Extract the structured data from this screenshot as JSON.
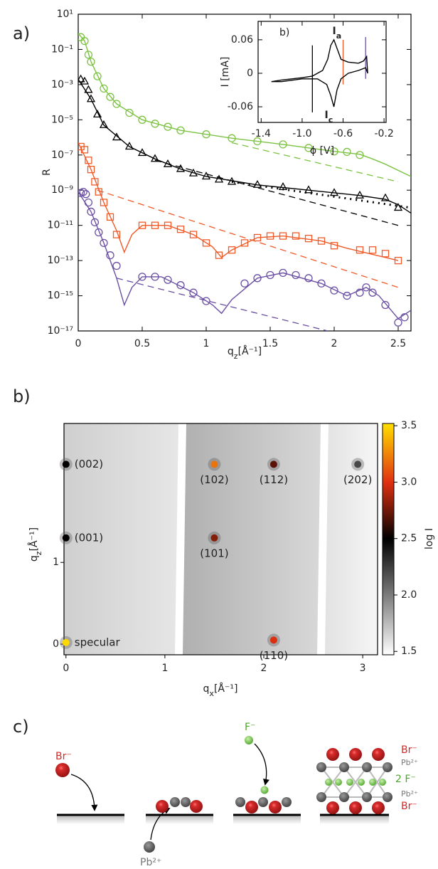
{
  "chart_data": [
    {
      "type": "scatter",
      "panel": "a)",
      "ylabel": "R",
      "xlabel": [
        "q",
        "z",
        "[Å⁻¹]"
      ],
      "ylog": true,
      "xlim": [
        0,
        2.6
      ],
      "ylim": [
        1e-17,
        10
      ],
      "xticks": [
        0,
        0.5,
        1,
        1.5,
        2,
        2.5
      ],
      "yticks": [
        {
          "value": 10,
          "label": "10¹"
        },
        {
          "value": 0.1,
          "label": "10⁻¹"
        },
        {
          "value": 0.001,
          "label": "10⁻³"
        },
        {
          "value": 1e-05,
          "label": "10⁻⁵"
        },
        {
          "value": 1e-07,
          "label": "10⁻⁷"
        },
        {
          "value": 1e-09,
          "label": "10⁻⁹"
        },
        {
          "value": 1e-11,
          "label": "10⁻¹¹"
        },
        {
          "value": 1e-13,
          "label": "10⁻¹³"
        },
        {
          "value": 1e-15,
          "label": "10⁻¹⁵"
        },
        {
          "value": 1e-17,
          "label": "10⁻¹⁷"
        }
      ],
      "series": [
        {
          "color": "#7cc242",
          "marker": "circle",
          "x": [
            0.02,
            0.05,
            0.08,
            0.1,
            0.15,
            0.2,
            0.25,
            0.3,
            0.4,
            0.5,
            0.6,
            0.7,
            0.8,
            1.0,
            1.2,
            1.4,
            1.6,
            1.8,
            2.0,
            2.1,
            2.2
          ],
          "values": [
            0.5,
            0.3,
            0.05,
            0.02,
            0.003,
            0.0006,
            0.0002,
            8e-05,
            2.5e-05,
            1e-05,
            6e-06,
            4e-06,
            2.5e-06,
            1.5e-06,
            9e-07,
            6e-07,
            4e-07,
            2.5e-07,
            1.6e-07,
            1.5e-07,
            1e-07
          ],
          "fit_x": [
            0,
            0.05,
            0.1,
            0.2,
            0.3,
            0.5,
            0.8,
            1.2,
            1.6,
            2.0,
            2.2,
            2.3,
            2.4,
            2.6
          ],
          "fit": [
            0.8,
            0.3,
            0.02,
            0.0006,
            8e-05,
            1e-05,
            2.5e-06,
            9e-07,
            4e-07,
            1.6e-07,
            1.1e-07,
            6e-08,
            3e-08,
            6e-09
          ],
          "dash_x": [
            1.2,
            2.5
          ],
          "dash": [
            5e-07,
            3e-09
          ]
        },
        {
          "color": "#000000",
          "marker": "triangle",
          "x": [
            0.02,
            0.05,
            0.08,
            0.1,
            0.15,
            0.2,
            0.3,
            0.4,
            0.5,
            0.6,
            0.7,
            0.8,
            0.9,
            1.0,
            1.1,
            1.2,
            1.4,
            1.6,
            1.8,
            2.0,
            2.2,
            2.4,
            2.5
          ],
          "values": [
            0.002,
            0.0015,
            0.0005,
            0.00015,
            2e-05,
            5e-06,
            1e-06,
            3e-07,
            1.3e-07,
            6e-08,
            3e-08,
            1.6e-08,
            9e-09,
            6e-09,
            4e-09,
            3e-09,
            2e-09,
            1.5e-09,
            1e-09,
            7e-10,
            5e-10,
            3.5e-10,
            1e-10
          ],
          "fit_x": [
            0,
            0.1,
            0.2,
            0.4,
            0.6,
            0.8,
            1.0,
            1.4,
            1.8,
            2.2,
            2.4,
            2.5,
            2.6
          ],
          "fit": [
            0.002,
            0.00015,
            5e-06,
            3e-07,
            6e-08,
            1.6e-08,
            6e-09,
            2e-09,
            1e-09,
            5e-10,
            3e-10,
            1.5e-10,
            5e-11
          ],
          "dash_x": [
            0.6,
            2.5
          ],
          "dash": [
            5e-08,
            1e-11
          ],
          "dot_x": [
            1.2,
            2.6
          ],
          "dot": [
            3e-09,
            1e-10
          ]
        },
        {
          "color": "#f05a28",
          "marker": "square",
          "x": [
            0.02,
            0.05,
            0.08,
            0.1,
            0.13,
            0.16,
            0.2,
            0.25,
            0.3,
            0.5,
            0.6,
            0.7,
            0.8,
            0.9,
            1.0,
            1.1,
            1.2,
            1.3,
            1.4,
            1.5,
            1.6,
            1.7,
            1.8,
            1.9,
            2.0,
            2.2,
            2.3,
            2.4,
            2.5
          ],
          "values": [
            3e-07,
            2e-07,
            5e-08,
            1.5e-08,
            3e-09,
            8e-10,
            2e-10,
            3e-11,
            3e-12,
            1e-11,
            1e-11,
            1e-11,
            6e-12,
            3e-12,
            1e-12,
            2e-13,
            4e-13,
            1e-12,
            2e-12,
            2.5e-12,
            2.5e-12,
            2.5e-12,
            1.8e-12,
            1.3e-12,
            7e-13,
            4e-13,
            4e-13,
            2.5e-13,
            1e-13
          ],
          "fit_x": [
            0,
            0.1,
            0.2,
            0.3,
            0.36,
            0.42,
            0.5,
            0.7,
            0.9,
            1.05,
            1.12,
            1.2,
            1.4,
            1.6,
            1.9,
            2.1,
            2.5
          ],
          "fit": [
            5e-07,
            1.5e-08,
            2e-10,
            5e-12,
            3e-13,
            3e-12,
            1e-11,
            1e-11,
            3e-12,
            6e-13,
            1.5e-13,
            4e-13,
            2e-12,
            2.5e-12,
            1.3e-12,
            5e-13,
            1e-13
          ],
          "dash_x": [
            0.15,
            2.5
          ],
          "dash": [
            1e-09,
            3e-15
          ]
        },
        {
          "color": "#6a4fa3",
          "marker": "circle",
          "x": [
            0.02,
            0.04,
            0.06,
            0.08,
            0.1,
            0.13,
            0.16,
            0.2,
            0.25,
            0.3,
            0.5,
            0.6,
            0.7,
            0.8,
            0.9,
            1.0,
            1.3,
            1.4,
            1.5,
            1.6,
            1.7,
            1.8,
            1.9,
            2.0,
            2.1,
            2.2,
            2.25,
            2.3,
            2.4,
            2.5,
            2.55
          ],
          "values": [
            7e-10,
            8e-10,
            6e-10,
            2e-10,
            6e-11,
            1.5e-11,
            4e-12,
            1e-12,
            2e-13,
            5e-14,
            1.2e-14,
            1.2e-14,
            8e-15,
            4e-15,
            1.5e-15,
            5e-16,
            5e-15,
            1e-14,
            1.5e-14,
            2e-14,
            1.5e-14,
            1e-14,
            5e-15,
            2e-15,
            1e-15,
            1.5e-15,
            3e-15,
            1.5e-15,
            3e-16,
            3e-17,
            6e-17
          ],
          "fit_x": [
            0,
            0.1,
            0.2,
            0.3,
            0.36,
            0.42,
            0.5,
            0.65,
            0.9,
            1.05,
            1.12,
            1.2,
            1.4,
            1.6,
            1.9,
            2.1,
            2.25,
            2.35,
            2.5,
            2.6
          ],
          "fit": [
            8e-10,
            6e-11,
            1e-12,
            1e-14,
            3e-16,
            3e-15,
            1.2e-14,
            1.2e-14,
            1.5e-15,
            3e-16,
            1e-16,
            6e-16,
            1e-14,
            2e-14,
            5e-15,
            1e-15,
            3e-15,
            1e-15,
            5e-17,
            1.5e-16
          ],
          "dash_x": [
            0.3,
            1.95
          ],
          "dash": [
            1e-14,
            1e-17
          ]
        }
      ]
    },
    {
      "type": "line",
      "panel": "b)",
      "xlabel": "ϕ [V]",
      "ylabel": "I [mA]",
      "color": "#000000",
      "xlim": [
        -1.43,
        -0.18
      ],
      "ylim": [
        -0.088,
        0.093
      ],
      "xticks": [
        -1.4,
        {
          "value": -1,
          "label": "-1.0"
        },
        -0.6,
        -0.2
      ],
      "yticks": [
        0.06,
        0,
        -0.06
      ],
      "x": [
        -1.3,
        -1.2,
        -1.0,
        -0.9,
        -0.8,
        -0.75,
        -0.72,
        -0.69,
        -0.66,
        -0.62,
        -0.55,
        -0.45,
        -0.4,
        -0.37,
        -0.36,
        -0.38,
        -0.45,
        -0.55,
        -0.62,
        -0.66,
        -0.69,
        -0.72,
        -0.76,
        -0.85,
        -1.0,
        -1.2,
        -1.3
      ],
      "values": [
        -0.015,
        -0.012,
        -0.008,
        -0.005,
        0.005,
        0.025,
        0.05,
        0.06,
        0.045,
        0.025,
        0.02,
        0.018,
        0.022,
        0.03,
        0,
        0.01,
        0.005,
        0,
        -0.01,
        -0.03,
        -0.06,
        -0.04,
        -0.02,
        -0.01,
        -0.01,
        -0.015,
        -0.015
      ],
      "vlines": [
        {
          "x": -0.9,
          "y": [
            -0.07,
            0.05
          ],
          "color": "#000000"
        },
        {
          "x": -0.6,
          "y": [
            -0.02,
            0.06
          ],
          "color": "#f05a28"
        },
        {
          "x": -0.38,
          "y": [
            -0.01,
            0.065
          ],
          "color": "#6a4fa3"
        }
      ],
      "annotations": [
        {
          "text": [
            "I",
            "a"
          ],
          "x": -0.66,
          "y": 0.075
        },
        {
          "text": [
            "I",
            "c"
          ],
          "x": -0.74,
          "y": -0.075
        }
      ]
    },
    {
      "type": "map",
      "panel": "b)",
      "xlabel": [
        "q",
        "x",
        "[Å⁻¹]"
      ],
      "ylabel": [
        "q",
        "z",
        "[Å⁻¹]"
      ],
      "clabel": "log I",
      "xlim": [
        -0.02,
        3.15
      ],
      "ylim": [
        -0.13,
        2.7
      ],
      "xticks": [
        0,
        1,
        2,
        3
      ],
      "yticks": [
        0,
        1
      ],
      "clim": [
        1.47,
        3.52
      ],
      "cticks": [
        1.5,
        {
          "value": 2,
          "label": "2.0"
        },
        2.5,
        {
          "value": 3,
          "label": "3.0"
        },
        3.5
      ],
      "peaks": [
        {
          "label": "specular",
          "x": 0,
          "y": 0.02,
          "value": 3.5
        },
        {
          "label": "(001)",
          "x": 0,
          "y": 1.3,
          "value": 2.5
        },
        {
          "label": "(002)",
          "x": 0,
          "y": 2.2,
          "value": 2.5
        },
        {
          "label": "(101)",
          "x": 1.5,
          "y": 1.3,
          "value": 2.8
        },
        {
          "label": "(102)",
          "x": 1.5,
          "y": 2.2,
          "value": 3.2
        },
        {
          "label": "(112)",
          "x": 2.1,
          "y": 2.2,
          "value": 2.7
        },
        {
          "label": "(110)",
          "x": 2.1,
          "y": 0.05,
          "value": 3.0
        },
        {
          "label": "(202)",
          "x": 2.95,
          "y": 2.2,
          "value": 2.2
        }
      ]
    }
  ],
  "diagram": {
    "panel": "c)",
    "labels": [
      "Br⁻",
      "Pb²⁺",
      "F⁻",
      "Br⁻",
      "Pb²⁺",
      "2 F⁻",
      "Pb²⁺",
      "Br⁻"
    ]
  }
}
